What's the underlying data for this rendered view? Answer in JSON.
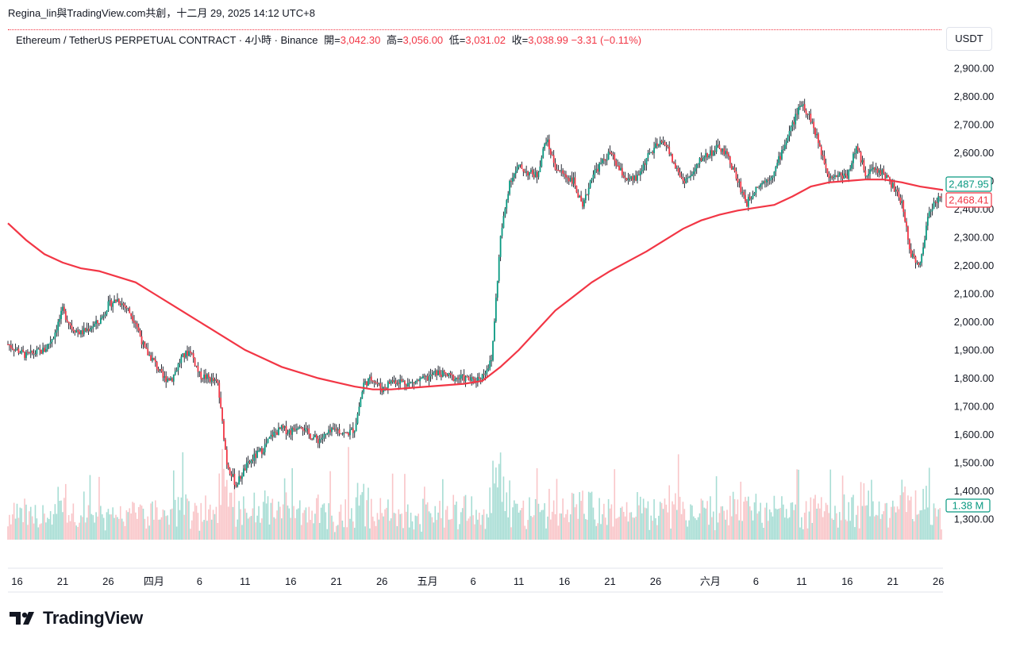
{
  "header": {
    "title": "Regina_lin與TradingView.com共創，十二月 29, 2025 14:12 UTC+8"
  },
  "symbol": {
    "name": "Ethereum / TetherUS PERPETUAL CONTRACT · 4小時 · Binance",
    "open_label": "開=",
    "open": "3,042.30",
    "high_label": "高=",
    "high": "3,056.00",
    "low_label": "低=",
    "low": "3,031.02",
    "close_label": "收=",
    "close": "3,038.99",
    "change": "−3.31 (−0.11%)"
  },
  "currency": "USDT",
  "logo_text": "TradingView",
  "colors": {
    "up": "#089981",
    "down": "#f23645",
    "ma": "#f23645",
    "vol_up": "#a7ddd4",
    "vol_down": "#f9c5c8",
    "grid_sep": "#e0e3eb"
  },
  "chart_data": {
    "type": "candlestick",
    "ylim": [
      1250,
      2950
    ],
    "yticks": [
      "2,900.00",
      "2,800.00",
      "2,700.00",
      "2,600.00",
      "2,500.00",
      "2,400.00",
      "2,300.00",
      "2,200.00",
      "2,100.00",
      "2,000.00",
      "1,900.00",
      "1,800.00",
      "1,700.00",
      "1,600.00",
      "1,500.00",
      "1,400.00",
      "1,300.00"
    ],
    "ytick_values": [
      2900,
      2800,
      2700,
      2600,
      2500,
      2400,
      2300,
      2200,
      2100,
      2000,
      1900,
      1800,
      1700,
      1600,
      1500,
      1400,
      1300
    ],
    "xticks": [
      "16",
      "21",
      "26",
      "四月",
      "6",
      "11",
      "16",
      "21",
      "26",
      "五月",
      "6",
      "11",
      "16",
      "21",
      "26",
      "六月",
      "6",
      "11",
      "16",
      "21",
      "26"
    ],
    "xtick_days": [
      -15,
      -10,
      -5,
      0,
      5,
      10,
      15,
      20,
      25,
      30,
      35,
      40,
      45,
      50,
      55,
      61,
      66,
      71,
      76,
      81,
      86
    ],
    "x_range_days": [
      -16,
      86.5
    ],
    "price_path": [
      [
        -16,
        1920
      ],
      [
        -14,
        1880
      ],
      [
        -12,
        1900
      ],
      [
        -11,
        1950
      ],
      [
        -10,
        2040
      ],
      [
        -9,
        1980
      ],
      [
        -8,
        1960
      ],
      [
        -6,
        2000
      ],
      [
        -5,
        2060
      ],
      [
        -4,
        2080
      ],
      [
        -3,
        2050
      ],
      [
        -2,
        2000
      ],
      [
        -1,
        1900
      ],
      [
        0,
        1860
      ],
      [
        1,
        1800
      ],
      [
        2,
        1800
      ],
      [
        3,
        1870
      ],
      [
        4,
        1900
      ],
      [
        5,
        1810
      ],
      [
        6,
        1800
      ],
      [
        7,
        1780
      ],
      [
        8,
        1500
      ],
      [
        9,
        1420
      ],
      [
        10,
        1480
      ],
      [
        11,
        1520
      ],
      [
        12,
        1550
      ],
      [
        13,
        1600
      ],
      [
        14,
        1620
      ],
      [
        15,
        1610
      ],
      [
        16,
        1640
      ],
      [
        17,
        1600
      ],
      [
        18,
        1580
      ],
      [
        19,
        1600
      ],
      [
        20,
        1620
      ],
      [
        21,
        1600
      ],
      [
        22,
        1620
      ],
      [
        23,
        1780
      ],
      [
        24,
        1800
      ],
      [
        25,
        1760
      ],
      [
        26,
        1790
      ],
      [
        27,
        1790
      ],
      [
        28,
        1780
      ],
      [
        29,
        1790
      ],
      [
        30,
        1800
      ],
      [
        31,
        1820
      ],
      [
        32,
        1810
      ],
      [
        33,
        1800
      ],
      [
        34,
        1800
      ],
      [
        35,
        1790
      ],
      [
        36,
        1810
      ],
      [
        37,
        1860
      ],
      [
        38,
        2300
      ],
      [
        39,
        2500
      ],
      [
        40,
        2550
      ],
      [
        41,
        2530
      ],
      [
        42,
        2520
      ],
      [
        43,
        2650
      ],
      [
        44,
        2550
      ],
      [
        45,
        2520
      ],
      [
        46,
        2500
      ],
      [
        47,
        2400
      ],
      [
        48,
        2520
      ],
      [
        49,
        2560
      ],
      [
        50,
        2600
      ],
      [
        51,
        2540
      ],
      [
        52,
        2500
      ],
      [
        53,
        2510
      ],
      [
        54,
        2580
      ],
      [
        55,
        2620
      ],
      [
        56,
        2640
      ],
      [
        57,
        2560
      ],
      [
        58,
        2500
      ],
      [
        59,
        2520
      ],
      [
        60,
        2580
      ],
      [
        61,
        2600
      ],
      [
        62,
        2620
      ],
      [
        63,
        2580
      ],
      [
        64,
        2500
      ],
      [
        65,
        2420
      ],
      [
        66,
        2480
      ],
      [
        67,
        2500
      ],
      [
        68,
        2530
      ],
      [
        69,
        2620
      ],
      [
        70,
        2700
      ],
      [
        71,
        2780
      ],
      [
        72,
        2720
      ],
      [
        73,
        2620
      ],
      [
        74,
        2520
      ],
      [
        75,
        2520
      ],
      [
        76,
        2520
      ],
      [
        77,
        2620
      ],
      [
        78,
        2530
      ],
      [
        79,
        2540
      ],
      [
        80,
        2530
      ],
      [
        81,
        2480
      ],
      [
        82,
        2420
      ],
      [
        83,
        2240
      ],
      [
        84,
        2200
      ],
      [
        85,
        2400
      ],
      [
        86,
        2440
      ],
      [
        86.5,
        2430
      ]
    ],
    "ma": {
      "period_points": [
        [
          -16,
          2350
        ],
        [
          -14,
          2290
        ],
        [
          -12,
          2240
        ],
        [
          -10,
          2210
        ],
        [
          -8,
          2190
        ],
        [
          -6,
          2180
        ],
        [
          -4,
          2160
        ],
        [
          -2,
          2140
        ],
        [
          0,
          2100
        ],
        [
          2,
          2060
        ],
        [
          4,
          2020
        ],
        [
          6,
          1980
        ],
        [
          8,
          1940
        ],
        [
          10,
          1900
        ],
        [
          12,
          1870
        ],
        [
          14,
          1840
        ],
        [
          16,
          1820
        ],
        [
          18,
          1800
        ],
        [
          20,
          1785
        ],
        [
          22,
          1770
        ],
        [
          24,
          1760
        ],
        [
          26,
          1760
        ],
        [
          28,
          1765
        ],
        [
          30,
          1770
        ],
        [
          32,
          1775
        ],
        [
          34,
          1780
        ],
        [
          36,
          1790
        ],
        [
          38,
          1840
        ],
        [
          40,
          1900
        ],
        [
          42,
          1970
        ],
        [
          44,
          2040
        ],
        [
          46,
          2090
        ],
        [
          48,
          2140
        ],
        [
          50,
          2180
        ],
        [
          52,
          2215
        ],
        [
          54,
          2250
        ],
        [
          56,
          2290
        ],
        [
          58,
          2330
        ],
        [
          60,
          2360
        ],
        [
          62,
          2380
        ],
        [
          64,
          2395
        ],
        [
          66,
          2405
        ],
        [
          68,
          2415
        ],
        [
          70,
          2445
        ],
        [
          72,
          2480
        ],
        [
          74,
          2495
        ],
        [
          76,
          2500
        ],
        [
          78,
          2505
        ],
        [
          80,
          2505
        ],
        [
          82,
          2495
        ],
        [
          84,
          2480
        ],
        [
          86.5,
          2468
        ]
      ]
    },
    "volume_max_display": "1.38 M",
    "price_labels": [
      {
        "text": "2,487.95",
        "value": 2487.95,
        "kind": "last-price"
      },
      {
        "text": "2,468.41",
        "value": 2468.41,
        "kind": "ma"
      },
      {
        "text": "1.38 M",
        "value": 1.38,
        "kind": "volume"
      }
    ]
  }
}
